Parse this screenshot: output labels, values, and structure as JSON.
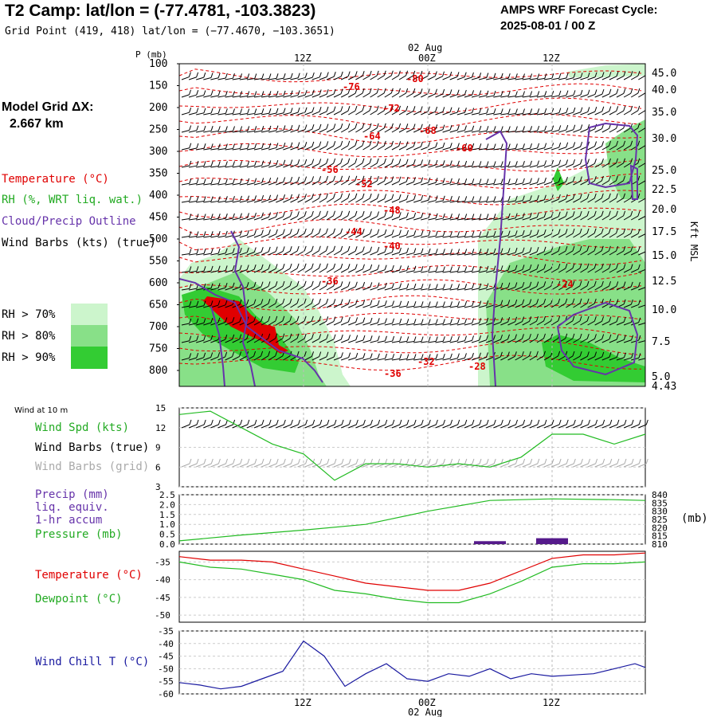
{
  "header": {
    "title": "T2 Camp:  lat/lon = (-77.4781, -103.3823)",
    "subtitle": "Grid Point (419, 418) lat/lon = (−77.4670, −103.3651)",
    "forecast_line1": "AMPS WRF Forecast Cycle:",
    "forecast_line2": "2025-08-01 / 00  Z"
  },
  "side_labels": {
    "grid_dx_title": "Model Grid ΔX:",
    "grid_dx_value": "2.667 km",
    "temperature": "Temperature (°C)",
    "rh": "RH (%, WRT liq. wat.)",
    "cloud": "Cloud/Precip Outline",
    "wind": "Wind Barbs (kts) (true)",
    "rh70": "RH > 70%",
    "rh80": "RH > 80%",
    "rh90": "RH > 90%",
    "wind10m": "Wind at 10 m",
    "wind_spd": "Wind Spd (kts)",
    "wind_barbs_true": "Wind Barbs (true)",
    "wind_barbs_grid": "Wind Barbs (grid)",
    "precip1": "Precip (mm)",
    "precip2": "liq. equiv.",
    "precip3": "1-hr accum",
    "pressure": "Pressure (mb)",
    "pressure_unit": "(mb)",
    "temp2": "Temperature (°C)",
    "dewpoint": "Dewpoint (°C)",
    "windchill": "Wind Chill T (°C)",
    "p_axis": "P (mb)",
    "kft": "Kft MSL"
  },
  "colors": {
    "temperature": "#e00000",
    "green": "#22bb22",
    "purple": "#6633aa",
    "grey": "#aaaaaa",
    "windchill": "#1a1aa0",
    "rh70": "#ccf5cc",
    "rh80": "#88e088",
    "rh90": "#33cc33"
  },
  "chart_data": [
    {
      "type": "heatmap",
      "name": "time-height cross section",
      "y_axis_left_label": "P (mb)",
      "pressure_ticks": [
        100,
        150,
        200,
        250,
        300,
        350,
        400,
        450,
        500,
        550,
        600,
        650,
        700,
        750,
        800
      ],
      "height_ticks": [
        "45.0",
        "40.0",
        "35.0",
        "30.0",
        "25.0",
        "22.5",
        "20.0",
        "17.5",
        "15.0",
        "12.5",
        "10.0",
        "7.5",
        "5.0",
        "4.43"
      ],
      "time_ticks_top": [
        "12Z",
        "00Z",
        "12Z"
      ],
      "date_label": "02 Aug",
      "temperature_contour_labels": [
        "-80",
        "-76",
        "-72",
        "-68",
        "-64",
        "-60",
        "-56",
        "-52",
        "-48",
        "-44",
        "-40",
        "-36",
        "-24",
        "-36",
        "-32",
        "-28"
      ]
    },
    {
      "type": "line",
      "name": "wind speed 10 m",
      "ylim": [
        3,
        15
      ],
      "y_ticks": [
        "15",
        "12",
        "9",
        "6",
        "3"
      ],
      "x": [
        0,
        3,
        6,
        9,
        12,
        15,
        18,
        21,
        24,
        27,
        30,
        33,
        36,
        39,
        42,
        45
      ],
      "series": [
        {
          "name": "Wind Spd (kts)",
          "values": [
            14,
            14.5,
            12,
            9.5,
            8,
            4,
            6.5,
            6.5,
            6,
            6.5,
            6,
            7.5,
            11,
            11,
            9.5,
            11
          ]
        }
      ]
    },
    {
      "type": "line",
      "name": "precip and pressure",
      "y_left_ticks": [
        "2.5",
        "2.0",
        "1.5",
        "1.0",
        "0.5",
        "0.0"
      ],
      "y_right_ticks": [
        "840",
        "835",
        "830",
        "825",
        "820",
        "815",
        "810"
      ],
      "x": [
        0,
        6,
        12,
        18,
        24,
        30,
        36,
        42,
        45
      ],
      "series": [
        {
          "name": "Pressure (mb)",
          "values": [
            812,
            815.5,
            818.5,
            822,
            830,
            836.5,
            837.5,
            837,
            836.5
          ]
        },
        {
          "name": "Precip (mm)",
          "values": [
            0,
            0,
            0,
            0,
            0,
            0.15,
            0.3,
            0,
            0
          ]
        }
      ]
    },
    {
      "type": "line",
      "name": "temperature dewpoint",
      "y_ticks": [
        "-35",
        "-40",
        "-45",
        "-50"
      ],
      "x": [
        0,
        3,
        6,
        9,
        12,
        15,
        18,
        21,
        24,
        27,
        30,
        33,
        36,
        39,
        42,
        45
      ],
      "series": [
        {
          "name": "Temperature (°C)",
          "values": [
            -33.5,
            -34.5,
            -34.5,
            -35,
            -37,
            -39,
            -41,
            -42,
            -43,
            -43,
            -41,
            -37.5,
            -34,
            -33,
            -33,
            -32.5
          ]
        },
        {
          "name": "Dewpoint (°C)",
          "values": [
            -35,
            -36.5,
            -37,
            -38.5,
            -40,
            -43,
            -44,
            -45.5,
            -46.5,
            -46.5,
            -44,
            -40.5,
            -36.5,
            -35.5,
            -35.5,
            -35
          ]
        }
      ]
    },
    {
      "type": "line",
      "name": "wind chill",
      "y_ticks": [
        "-35",
        "-40",
        "-45",
        "-50",
        "-55",
        "-60"
      ],
      "x_ticks": [
        "12Z",
        "00Z",
        "12Z"
      ],
      "date_label": "02 Aug",
      "x": [
        0,
        2,
        4,
        6,
        8,
        10,
        12,
        14,
        16,
        18,
        20,
        22,
        24,
        26,
        28,
        30,
        32,
        34,
        36,
        38,
        40,
        42,
        44,
        45
      ],
      "series": [
        {
          "name": "Wind Chill T (°C)",
          "values": [
            -55.5,
            -56.5,
            -58,
            -57,
            -54,
            -51,
            -39,
            -45,
            -57,
            -52,
            -48,
            -54,
            -55,
            -52,
            -53,
            -50,
            -54,
            -52,
            -53,
            -52.5,
            -52,
            -50,
            -48,
            -49.5
          ]
        }
      ]
    }
  ]
}
